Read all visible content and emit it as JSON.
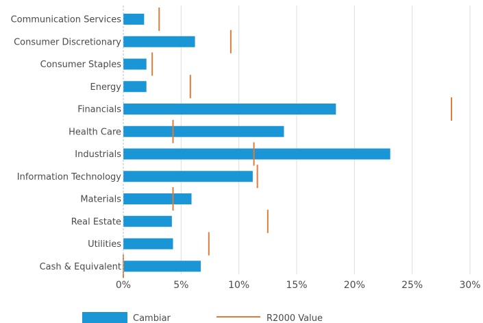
{
  "chart_data": {
    "type": "bar",
    "orientation": "horizontal",
    "categories": [
      "Communication Services",
      "Consumer Discretionary",
      "Consumer Staples",
      "Energy",
      "Financials",
      "Health Care",
      "Industrials",
      "Information Technology",
      "Materials",
      "Real Estate",
      "Utilities",
      "Cash & Equivalent"
    ],
    "series": [
      {
        "name": "Cambiar",
        "kind": "bar",
        "color": "#1a95d6",
        "values": [
          1.8,
          6.2,
          2.0,
          2.0,
          18.4,
          13.9,
          23.1,
          11.2,
          5.9,
          4.2,
          4.3,
          6.7
        ]
      },
      {
        "name": "R2000 Value",
        "kind": "marker",
        "color": "#e07b39",
        "values": [
          3.1,
          9.3,
          2.5,
          5.8,
          28.4,
          4.3,
          11.3,
          11.6,
          4.3,
          12.5,
          7.4,
          0.0
        ]
      }
    ],
    "xticks": [
      "0%",
      "5%",
      "10%",
      "15%",
      "20%",
      "25%",
      "30%"
    ],
    "xtick_values": [
      0,
      5,
      10,
      15,
      20,
      25,
      30
    ],
    "xlim": [
      0,
      30
    ],
    "grid": "vertical",
    "legend_position": "bottom",
    "title": "",
    "xlabel": "",
    "ylabel": ""
  }
}
